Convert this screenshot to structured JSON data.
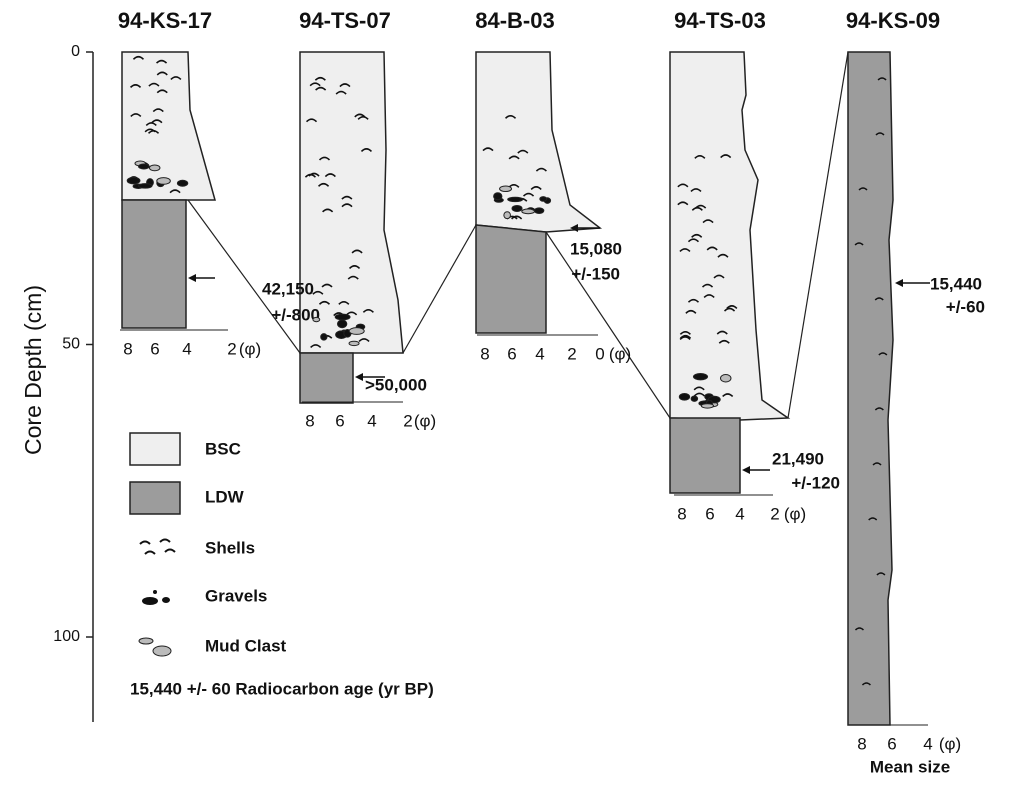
{
  "axis": {
    "label": "Core Depth (cm)",
    "ticks": [
      0,
      50,
      100
    ]
  },
  "cores": [
    {
      "name": "94-KS-17",
      "scale": [
        8,
        6,
        4,
        2
      ],
      "unit": "(φ)",
      "age": "42,150",
      "error": "+/-800"
    },
    {
      "name": "94-TS-07",
      "scale": [
        8,
        6,
        4,
        2
      ],
      "unit": "(φ)",
      "age": ">50,000"
    },
    {
      "name": "84-B-03",
      "scale": [
        8,
        6,
        4,
        2,
        0
      ],
      "unit": "(φ)",
      "age": "15,080",
      "error": "+/-150"
    },
    {
      "name": "94-TS-03",
      "scale": [
        8,
        6,
        4,
        2
      ],
      "unit": "(φ)",
      "age": "21,490",
      "error": "+/-120"
    },
    {
      "name": "94-KS-09",
      "scale": [
        8,
        6,
        4
      ],
      "unit": "(φ)",
      "age": "15,440",
      "error": "+/-60"
    }
  ],
  "legend": [
    {
      "label": "BSC"
    },
    {
      "label": "LDW"
    },
    {
      "label": "Shells"
    },
    {
      "label": "Gravels"
    },
    {
      "label": "Mud Clast"
    }
  ],
  "legend_note": "15,440 +/- 60  Radiocarbon age (yr BP)",
  "x_label": "Mean size"
}
